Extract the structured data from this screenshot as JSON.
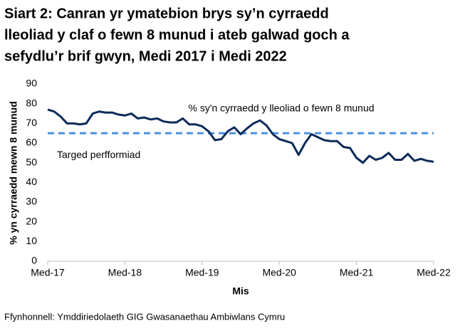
{
  "chart_data": {
    "type": "line",
    "title": [
      "Siart 2: Canran yr ymatebion brys sy’n cyrraedd",
      "lleoliad y claf o fewn 8 munud i ateb galwad goch a",
      "sefydlu’r brif gwyn, Medi 2017 i Medi 2022"
    ],
    "y_label": "% yn cyrraedd mewn 8 munud",
    "x_label": "Mis",
    "source": "Ffynhonnell: Ymddiriedolaeth GIG Gwasanaethau Ambiwlans Cymru",
    "categories": [
      "Med-17",
      null,
      null,
      null,
      null,
      null,
      null,
      null,
      null,
      null,
      null,
      null,
      "Med-18",
      null,
      null,
      null,
      null,
      null,
      null,
      null,
      null,
      null,
      null,
      null,
      "Med-19",
      null,
      null,
      null,
      null,
      null,
      null,
      null,
      null,
      null,
      null,
      null,
      "Med-20",
      null,
      null,
      null,
      null,
      null,
      null,
      null,
      null,
      null,
      null,
      null,
      "Med-21",
      null,
      null,
      null,
      null,
      null,
      null,
      null,
      null,
      null,
      null,
      null,
      "Med-22"
    ],
    "series": [
      {
        "name": "% sy'n cyrraedd y lleoliad o fewn 8 munud",
        "color": "#0b2b5a",
        "values": [
          77,
          76,
          73.5,
          70,
          70,
          69.5,
          70,
          75,
          76,
          75.5,
          75.5,
          74.5,
          74,
          75,
          72.5,
          73,
          72,
          72.5,
          71,
          70.5,
          70.5,
          72.5,
          69.5,
          69.5,
          68.5,
          66,
          61.5,
          62,
          66,
          68,
          64.5,
          67.5,
          70,
          71.5,
          69,
          64.5,
          62,
          61,
          60,
          54,
          60,
          64.5,
          63,
          61.5,
          61,
          61,
          58,
          57.5,
          52.5,
          50,
          53.5,
          51.5,
          52.5,
          55,
          51.5,
          51.5,
          54.5,
          51,
          52,
          51,
          50.5
        ]
      }
    ],
    "target": {
      "value": 65,
      "label": "Targed perfformiad",
      "color": "#4a90e2"
    },
    "ylim": [
      0,
      90
    ],
    "yticks": [
      0,
      10,
      20,
      30,
      40,
      50,
      60,
      70,
      80,
      90
    ],
    "grid": false
  }
}
